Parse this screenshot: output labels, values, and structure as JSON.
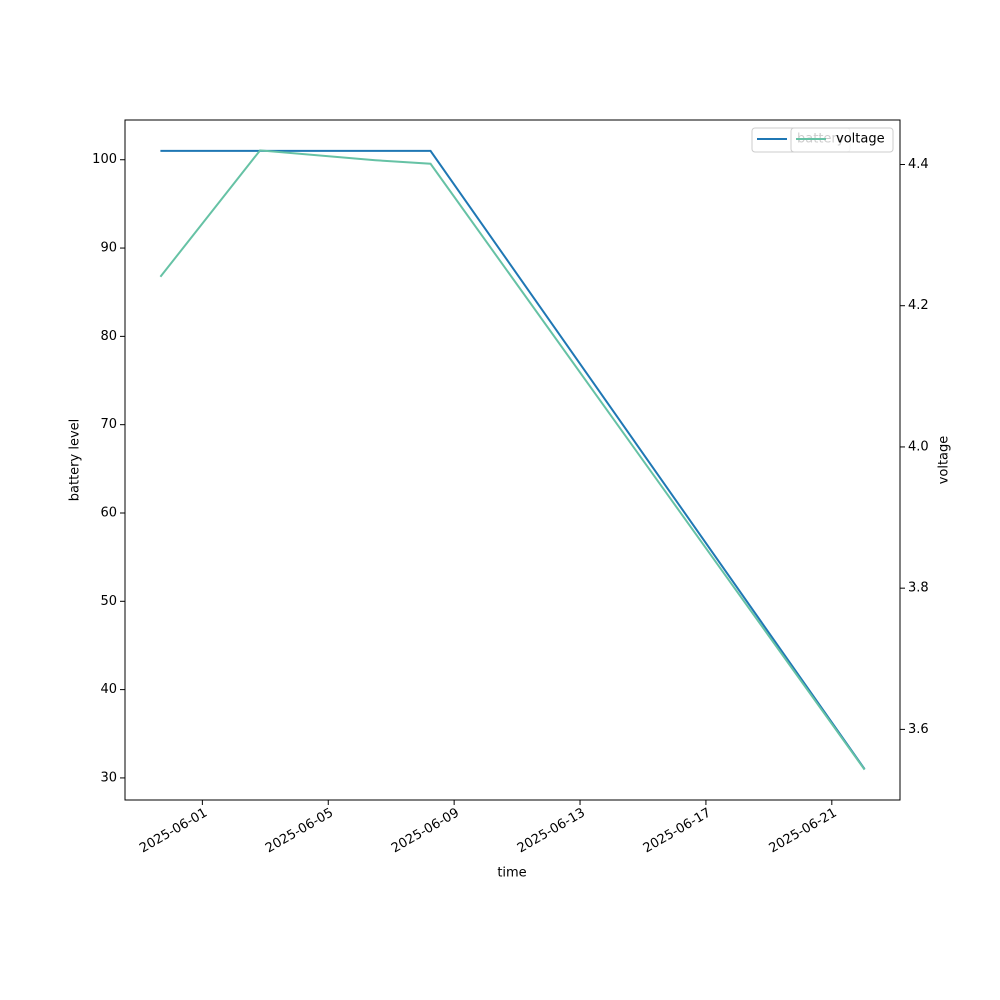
{
  "chart_data": {
    "type": "line",
    "xlabel": "time",
    "ylabel": "battery level",
    "y2label": "voltage",
    "xlim": [
      "2025-05-29T13:00",
      "2025-06-23T04:00"
    ],
    "xticks": [
      "2025-06-01",
      "2025-06-05",
      "2025-06-09",
      "2025-06-13",
      "2025-06-17",
      "2025-06-21"
    ],
    "ylim": [
      27.5,
      104.5
    ],
    "yticks": [
      30,
      40,
      50,
      60,
      70,
      80,
      90,
      100
    ],
    "y2lim": [
      3.5,
      4.463
    ],
    "y2ticks": [
      3.6,
      3.8,
      {
        "value": 4,
        "label": "4.0"
      },
      4.2,
      4.4
    ],
    "series": [
      {
        "name": "battery",
        "color": "#1f77b4",
        "x": [
          "2025-05-30T16:00",
          "2025-06-08T06:00",
          "2025-06-22T01:00"
        ],
        "values": [
          101,
          101,
          31
        ]
      },
      {
        "name": "voltage",
        "color": "#66c2a5",
        "axis": "y2",
        "x": [
          "2025-05-30T16:00",
          "2025-06-02T20:00",
          "2025-06-06T12:00",
          "2025-06-08T06:00",
          "2025-06-22T01:00"
        ],
        "values": [
          4.241,
          4.42,
          4.406,
          4.401,
          3.543
        ]
      }
    ],
    "legend": "upper right"
  }
}
